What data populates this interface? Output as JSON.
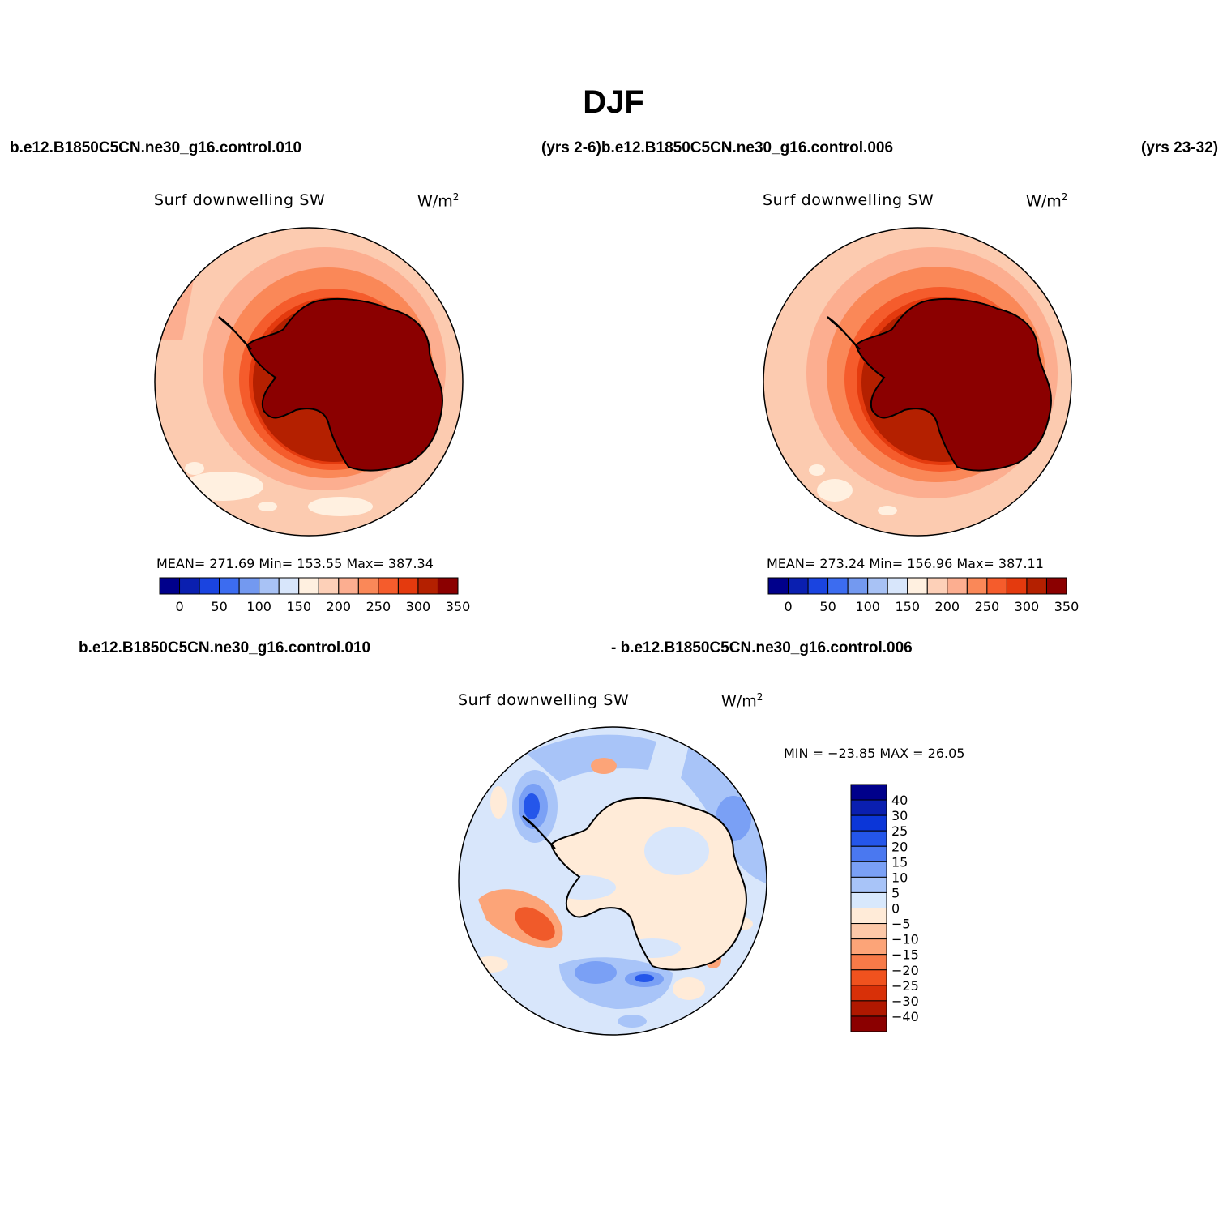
{
  "title": "DJF",
  "case_labels": {
    "top_left": "b.e12.B1850C5CN.ne30_g16.control.010",
    "top_center": "(yrs 2-6)b.e12.B1850C5CN.ne30_g16.control.006",
    "top_right": "(yrs 23-32)",
    "bottom_left": "b.e12.B1850C5CN.ne30_g16.control.010",
    "bottom_right": "- b.e12.B1850C5CN.ne30_g16.control.006"
  },
  "panels": {
    "p1": {
      "title": "Surf downwelling SW",
      "units_base": "W/m",
      "units_exp": "2",
      "stats": "MEAN= 271.69   Min= 153.55   Max= 387.34"
    },
    "p2": {
      "title": "Surf downwelling SW",
      "units_base": "W/m",
      "units_exp": "2",
      "stats": "MEAN= 273.24   Min= 156.96   Max= 387.11"
    },
    "p3": {
      "title": "Surf downwelling SW",
      "units_base": "W/m",
      "units_exp": "2",
      "stats": "MIN = −23.85 MAX =  26.05"
    }
  },
  "colorbar_abs": {
    "colors": [
      "#00008b",
      "#0a1fb0",
      "#1a44e0",
      "#3c6cf0",
      "#7399f0",
      "#a8c2f5",
      "#d8e6fb",
      "#fff0e0",
      "#fdd0b8",
      "#fcae90",
      "#fa8858",
      "#f55c2c",
      "#e43a0e",
      "#b42000",
      "#8b0000"
    ],
    "labels": [
      "0",
      "50",
      "100",
      "150",
      "200",
      "250",
      "300",
      "350"
    ]
  },
  "colorbar_diff": {
    "colors": [
      "#00008b",
      "#0a1fb0",
      "#0b36d8",
      "#2456ea",
      "#4a78f0",
      "#7aa0f5",
      "#a8c4f8",
      "#d8e8fc",
      "#ffebd8",
      "#fcc8a8",
      "#fca478",
      "#f77a48",
      "#f0521e",
      "#d83008",
      "#b01800",
      "#8b0000"
    ],
    "labels": [
      "40",
      "30",
      "25",
      "20",
      "15",
      "10",
      "5",
      "0",
      "−5",
      "−10",
      "−15",
      "−20",
      "−25",
      "−30",
      "−40"
    ]
  },
  "map_colors": {
    "p1": {
      "outer": "#fccbb0",
      "ring1": "#fcae90",
      "ring2": "#fa8858",
      "ring3": "#f55c2c",
      "ring4": "#e43a0e",
      "ring5": "#b42000",
      "land": "#8b0000",
      "pale": "#fff0e0"
    },
    "p3": {
      "ocean": "#d8e6fb",
      "land": "#ffebd8",
      "blue1": "#a8c4f8",
      "blue2": "#7aa0f5",
      "blue3": "#2456ea",
      "red1": "#fca478",
      "red2": "#f05a2a"
    }
  }
}
